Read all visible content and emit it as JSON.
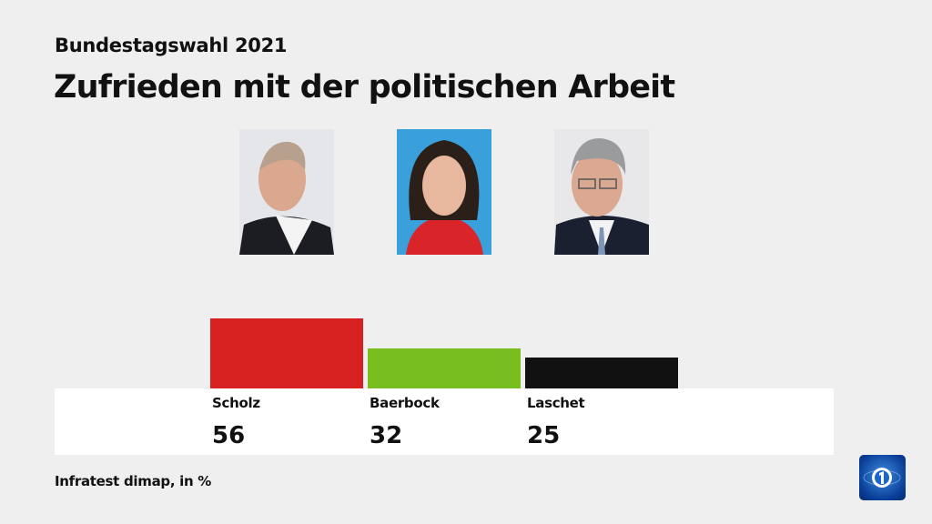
{
  "header": {
    "subtitle": "Bundestagswahl 2021",
    "title": "Zufrieden mit der politischen Arbeit"
  },
  "chart_data": {
    "type": "bar",
    "title": "Zufrieden mit der politischen Arbeit",
    "categories": [
      "Scholz",
      "Baerbock",
      "Laschet"
    ],
    "values": [
      56,
      32,
      25
    ],
    "colors": [
      "#d62120",
      "#78be1e",
      "#111111"
    ],
    "unit": "%",
    "ylim": [
      0,
      100
    ],
    "grid": false
  },
  "footer": {
    "source": "Infratest dimap, in %"
  },
  "logo": {
    "name": "tagesschau-logo",
    "text": "1"
  }
}
